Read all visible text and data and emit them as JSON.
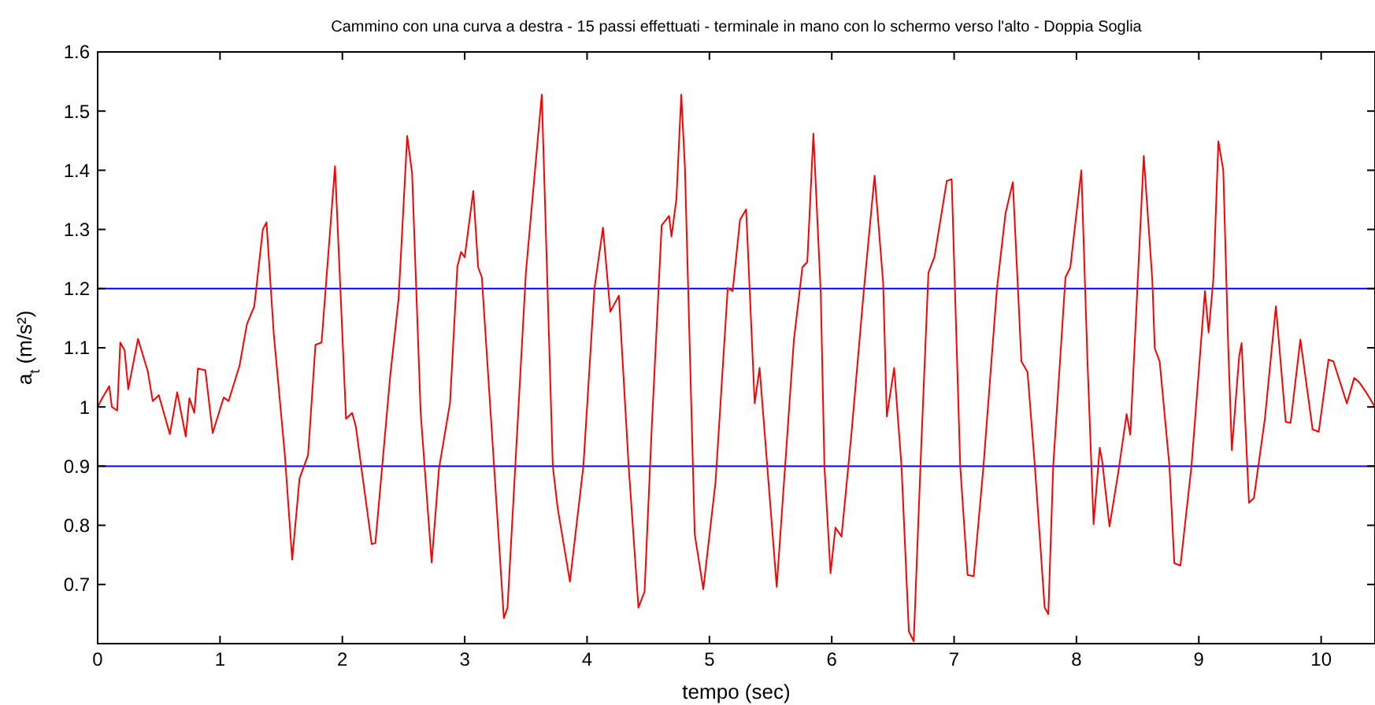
{
  "chart_data": {
    "type": "line",
    "title": "Cammino con una curva a destra - 15 passi effettuati - terminale in mano con lo schermo verso l'alto - Doppia Soglia",
    "xlabel": "tempo (sec)",
    "ylabel": "a$_{t}$ (m/s²)",
    "xlim": [
      0,
      10.44
    ],
    "ylim": [
      0.6,
      1.6
    ],
    "xticks": [
      0,
      1,
      2,
      3,
      4,
      5,
      6,
      7,
      8,
      9,
      10
    ],
    "yticks": [
      {
        "value": 0.6,
        "label": null
      },
      0.7,
      0.8,
      0.9,
      1,
      1.1,
      1.2,
      1.3,
      1.4,
      1.5,
      1.6
    ],
    "grid": false,
    "marker": "none",
    "line_style": "solid",
    "ref_lines": [
      {
        "axis": "y",
        "value": 1.2,
        "color": "#0000ff"
      },
      {
        "axis": "y",
        "value": 0.9,
        "color": "#0000ff"
      }
    ],
    "series": [
      {
        "color": "#ff0000",
        "x": [
          0,
          0.04,
          0.095,
          0.116,
          0.16,
          0.185,
          0.22,
          0.25,
          0.33,
          0.41,
          0.45,
          0.5,
          0.59,
          0.65,
          0.72,
          0.75,
          0.79,
          0.82,
          0.88,
          0.94,
          1.03,
          1.07,
          1.16,
          1.22,
          1.28,
          1.35,
          1.38,
          1.44,
          1.53,
          1.59,
          1.65,
          1.72,
          1.78,
          1.83,
          1.94,
          2.03,
          2.08,
          2.11,
          2.24,
          2.27,
          2.39,
          2.46,
          2.53,
          2.57,
          2.64,
          2.73,
          2.79,
          2.88,
          2.94,
          2.97,
          3.0,
          3.07,
          3.11,
          3.14,
          3.24,
          3.32,
          3.35,
          3.5,
          3.63,
          3.72,
          3.76,
          3.86,
          3.97,
          4.06,
          4.13,
          4.19,
          4.26,
          4.34,
          4.42,
          4.47,
          4.53,
          4.61,
          4.67,
          4.69,
          4.73,
          4.77,
          4.8,
          4.88,
          4.95,
          5.05,
          5.15,
          5.19,
          5.25,
          5.3,
          5.37,
          5.41,
          5.55,
          5.69,
          5.76,
          5.8,
          5.85,
          5.91,
          5.94,
          5.99,
          6.03,
          6.08,
          6.16,
          6.26,
          6.35,
          6.42,
          6.45,
          6.51,
          6.57,
          6.63,
          6.67,
          6.73,
          6.79,
          6.84,
          6.94,
          6.98,
          7.05,
          7.11,
          7.16,
          7.24,
          7.35,
          7.42,
          7.48,
          7.55,
          7.6,
          7.66,
          7.74,
          7.77,
          7.81,
          7.91,
          7.95,
          8.04,
          8.09,
          8.14,
          8.19,
          8.21,
          8.27,
          8.34,
          8.41,
          8.44,
          8.55,
          8.62,
          8.64,
          8.68,
          8.76,
          8.8,
          8.85,
          8.94,
          9.05,
          9.08,
          9.12,
          9.16,
          9.2,
          9.24,
          9.27,
          9.33,
          9.35,
          9.41,
          9.45,
          9.54,
          9.63,
          9.71,
          9.75,
          9.83,
          9.93,
          9.98,
          10.06,
          10.1,
          10.21,
          10.27,
          10.31,
          10.37,
          10.44
        ],
        "values": [
          1.0,
          1.016,
          1.035,
          1.0,
          0.994,
          1.109,
          1.096,
          1.03,
          1.115,
          1.06,
          1.01,
          1.02,
          0.954,
          1.025,
          0.95,
          1.015,
          0.99,
          1.065,
          1.062,
          0.956,
          1.016,
          1.01,
          1.07,
          1.14,
          1.17,
          1.3,
          1.312,
          1.122,
          0.919,
          0.742,
          0.879,
          0.919,
          1.105,
          1.109,
          1.407,
          0.98,
          0.99,
          0.967,
          0.768,
          0.77,
          1.05,
          1.184,
          1.458,
          1.395,
          0.99,
          0.737,
          0.896,
          1.007,
          1.237,
          1.262,
          1.253,
          1.365,
          1.236,
          1.219,
          0.9,
          0.643,
          0.661,
          1.227,
          1.528,
          0.9,
          0.829,
          0.705,
          0.9,
          1.2,
          1.303,
          1.161,
          1.188,
          0.9,
          0.661,
          0.688,
          0.971,
          1.307,
          1.323,
          1.288,
          1.351,
          1.528,
          1.404,
          0.785,
          0.692,
          0.873,
          1.201,
          1.196,
          1.316,
          1.334,
          1.006,
          1.066,
          0.696,
          1.112,
          1.236,
          1.245,
          1.462,
          1.192,
          0.9,
          0.719,
          0.796,
          0.781,
          0.953,
          1.192,
          1.391,
          1.21,
          0.984,
          1.066,
          0.9,
          0.621,
          0.604,
          0.927,
          1.227,
          1.254,
          1.382,
          1.385,
          0.9,
          0.716,
          0.714,
          0.9,
          1.2,
          1.327,
          1.38,
          1.077,
          1.059,
          0.9,
          0.661,
          0.65,
          0.9,
          1.219,
          1.236,
          1.4,
          1.077,
          0.802,
          0.931,
          0.909,
          0.798,
          0.887,
          0.988,
          0.953,
          1.424,
          1.214,
          1.099,
          1.077,
          0.9,
          0.736,
          0.732,
          0.9,
          1.196,
          1.126,
          1.219,
          1.449,
          1.4,
          1.104,
          0.927,
          1.086,
          1.108,
          0.838,
          0.846,
          0.98,
          1.17,
          0.975,
          0.973,
          1.114,
          0.962,
          0.958,
          1.08,
          1.077,
          1.006,
          1.049,
          1.042,
          1.024,
          1.0
        ]
      }
    ]
  }
}
